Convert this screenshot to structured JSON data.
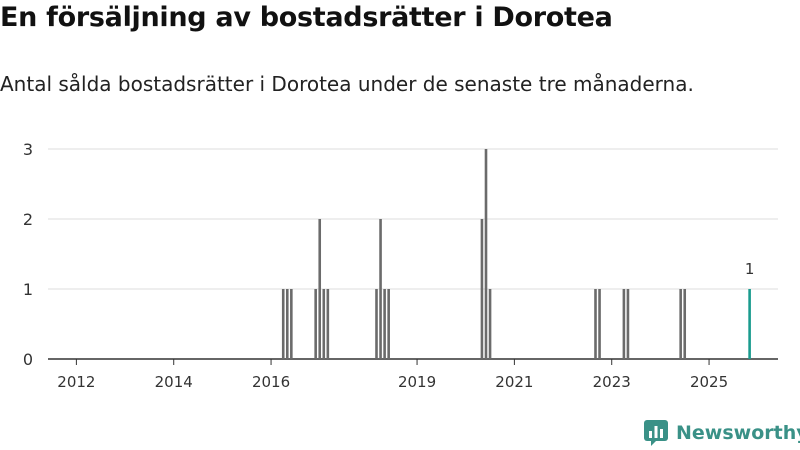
{
  "title": "En försäljning av bostadsrätter i Dorotea",
  "subtitle": "Antal sålda bostadsrätter i Dorotea under de senaste tre månaderna.",
  "brand": {
    "name": "Newsworthy",
    "icon": "newsworthy-bar-chart-icon"
  },
  "colors": {
    "bar": "#6b6b6b",
    "highlight": "#1a9b8e",
    "grid": "#dddddd",
    "axis": "#333333",
    "text": "#333333",
    "brand": "#3a9187"
  },
  "chart_data": {
    "type": "bar",
    "xlabel": "",
    "ylabel": "",
    "ylim": [
      0,
      3
    ],
    "yticks": [
      0,
      1,
      2,
      3
    ],
    "grid": true,
    "x_start": "2011-06",
    "x_end": "2026-06",
    "xticks": [
      "2012",
      "2014",
      "2016",
      "2019",
      "2021",
      "2023",
      "2025"
    ],
    "points": [
      {
        "x": "2016-04",
        "value": 1
      },
      {
        "x": "2016-05",
        "value": 1
      },
      {
        "x": "2016-06",
        "value": 1
      },
      {
        "x": "2016-12",
        "value": 1
      },
      {
        "x": "2017-01",
        "value": 2
      },
      {
        "x": "2017-02",
        "value": 1
      },
      {
        "x": "2017-03",
        "value": 1
      },
      {
        "x": "2018-03",
        "value": 1
      },
      {
        "x": "2018-04",
        "value": 2
      },
      {
        "x": "2018-05",
        "value": 1
      },
      {
        "x": "2018-06",
        "value": 1
      },
      {
        "x": "2020-05",
        "value": 2
      },
      {
        "x": "2020-06",
        "value": 3
      },
      {
        "x": "2020-07",
        "value": 1
      },
      {
        "x": "2022-09",
        "value": 1
      },
      {
        "x": "2022-10",
        "value": 1
      },
      {
        "x": "2023-04",
        "value": 1
      },
      {
        "x": "2023-05",
        "value": 1
      },
      {
        "x": "2024-06",
        "value": 1
      },
      {
        "x": "2024-07",
        "value": 1
      },
      {
        "x": "2025-11",
        "value": 1,
        "highlight": true,
        "label": "1"
      }
    ]
  }
}
